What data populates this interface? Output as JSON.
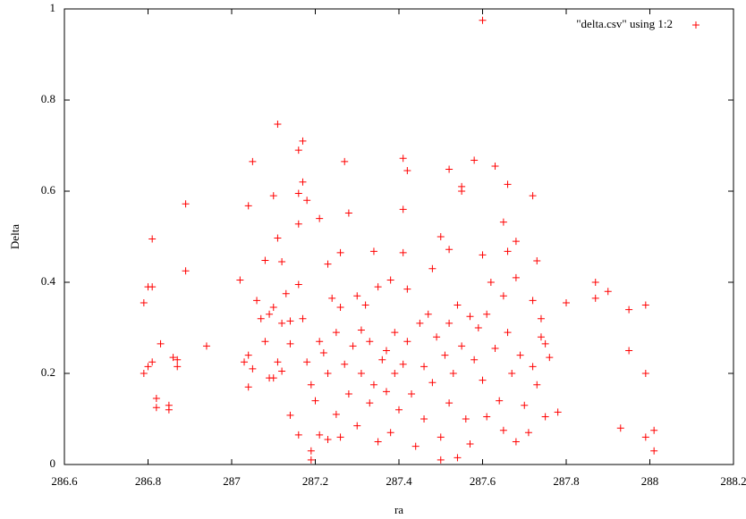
{
  "chart_data": {
    "type": "scatter",
    "xlabel": "ra",
    "ylabel": "Delta",
    "xlim": [
      286.6,
      288.2
    ],
    "xticks": [
      286.6,
      286.8,
      287,
      287.2,
      287.4,
      287.6,
      287.8,
      288,
      288.2
    ],
    "ylim": [
      0,
      1
    ],
    "yticks": [
      0,
      0.2,
      0.4,
      0.6,
      0.8,
      1
    ],
    "grid": false,
    "legend": "top-right",
    "series": [
      {
        "name": "\"delta.csv\" using 1:2",
        "color": "#ff0000",
        "x": [
          286.79,
          286.8,
          286.81,
          286.81,
          286.79,
          286.8,
          286.81,
          286.82,
          286.82,
          286.83,
          286.85,
          286.85,
          286.86,
          286.87,
          286.87,
          286.89,
          286.89,
          286.94,
          287.8,
          287.87,
          287.87,
          287.9,
          287.93,
          287.95,
          287.95,
          287.99,
          287.99,
          287.99,
          288.01,
          288.01,
          287.78,
          287.75,
          287.75,
          287.76,
          287.6,
          287.11,
          287.17,
          287.16,
          287.05,
          287.27,
          287.41,
          287.42,
          287.52,
          287.58,
          287.63,
          287.55,
          287.55,
          287.66,
          287.72,
          287.1,
          287.17,
          287.16,
          287.04,
          287.18,
          287.28,
          287.21,
          287.41,
          287.16,
          287.65,
          287.11,
          287.5,
          287.6,
          287.68,
          287.26,
          287.34,
          287.41,
          287.52,
          287.66,
          287.73,
          287.08,
          287.12,
          287.23,
          287.02,
          287.03,
          287.04,
          287.04,
          287.05,
          287.06,
          287.07,
          287.08,
          287.09,
          287.09,
          287.1,
          287.1,
          287.11,
          287.12,
          287.12,
          287.13,
          287.14,
          287.14,
          287.14,
          287.16,
          287.16,
          287.17,
          287.18,
          287.19,
          287.19,
          287.19,
          287.2,
          287.21,
          287.21,
          287.22,
          287.23,
          287.23,
          287.24,
          287.25,
          287.25,
          287.26,
          287.26,
          287.27,
          287.28,
          287.29,
          287.3,
          287.3,
          287.31,
          287.31,
          287.32,
          287.33,
          287.33,
          287.34,
          287.35,
          287.35,
          287.36,
          287.37,
          287.37,
          287.38,
          287.38,
          287.39,
          287.39,
          287.4,
          287.41,
          287.42,
          287.42,
          287.43,
          287.44,
          287.45,
          287.46,
          287.46,
          287.47,
          287.48,
          287.48,
          287.49,
          287.5,
          287.5,
          287.51,
          287.52,
          287.52,
          287.53,
          287.54,
          287.54,
          287.55,
          287.56,
          287.57,
          287.57,
          287.58,
          287.59,
          287.6,
          287.61,
          287.61,
          287.62,
          287.63,
          287.64,
          287.65,
          287.65,
          287.66,
          287.67,
          287.68,
          287.68,
          287.69,
          287.7,
          287.71,
          287.72,
          287.72,
          287.73,
          287.74,
          287.74
        ],
        "values": [
          0.355,
          0.39,
          0.39,
          0.495,
          0.2,
          0.215,
          0.225,
          0.145,
          0.125,
          0.265,
          0.13,
          0.12,
          0.235,
          0.23,
          0.215,
          0.425,
          0.572,
          0.26,
          0.355,
          0.4,
          0.365,
          0.38,
          0.08,
          0.25,
          0.34,
          0.2,
          0.35,
          0.06,
          0.075,
          0.03,
          0.115,
          0.105,
          0.265,
          0.235,
          0.975,
          0.747,
          0.71,
          0.69,
          0.665,
          0.665,
          0.672,
          0.645,
          0.648,
          0.668,
          0.655,
          0.61,
          0.6,
          0.615,
          0.59,
          0.59,
          0.62,
          0.595,
          0.568,
          0.58,
          0.552,
          0.54,
          0.56,
          0.528,
          0.532,
          0.497,
          0.5,
          0.46,
          0.49,
          0.465,
          0.468,
          0.465,
          0.472,
          0.468,
          0.447,
          0.448,
          0.445,
          0.44,
          0.405,
          0.225,
          0.24,
          0.17,
          0.21,
          0.36,
          0.32,
          0.27,
          0.33,
          0.19,
          0.345,
          0.19,
          0.225,
          0.31,
          0.205,
          0.375,
          0.315,
          0.265,
          0.108,
          0.065,
          0.395,
          0.32,
          0.225,
          0.175,
          0.03,
          0.01,
          0.14,
          0.27,
          0.065,
          0.245,
          0.2,
          0.055,
          0.365,
          0.29,
          0.11,
          0.345,
          0.06,
          0.22,
          0.155,
          0.26,
          0.37,
          0.085,
          0.295,
          0.2,
          0.35,
          0.27,
          0.135,
          0.175,
          0.39,
          0.05,
          0.23,
          0.25,
          0.16,
          0.405,
          0.07,
          0.29,
          0.2,
          0.12,
          0.22,
          0.385,
          0.27,
          0.155,
          0.04,
          0.31,
          0.215,
          0.1,
          0.33,
          0.43,
          0.18,
          0.28,
          0.06,
          0.01,
          0.24,
          0.31,
          0.135,
          0.2,
          0.35,
          0.015,
          0.26,
          0.1,
          0.325,
          0.045,
          0.23,
          0.3,
          0.185,
          0.33,
          0.105,
          0.4,
          0.255,
          0.14,
          0.37,
          0.075,
          0.29,
          0.2,
          0.05,
          0.41,
          0.24,
          0.13,
          0.07,
          0.36,
          0.215,
          0.175,
          0.32,
          0.28
        ]
      }
    ]
  }
}
